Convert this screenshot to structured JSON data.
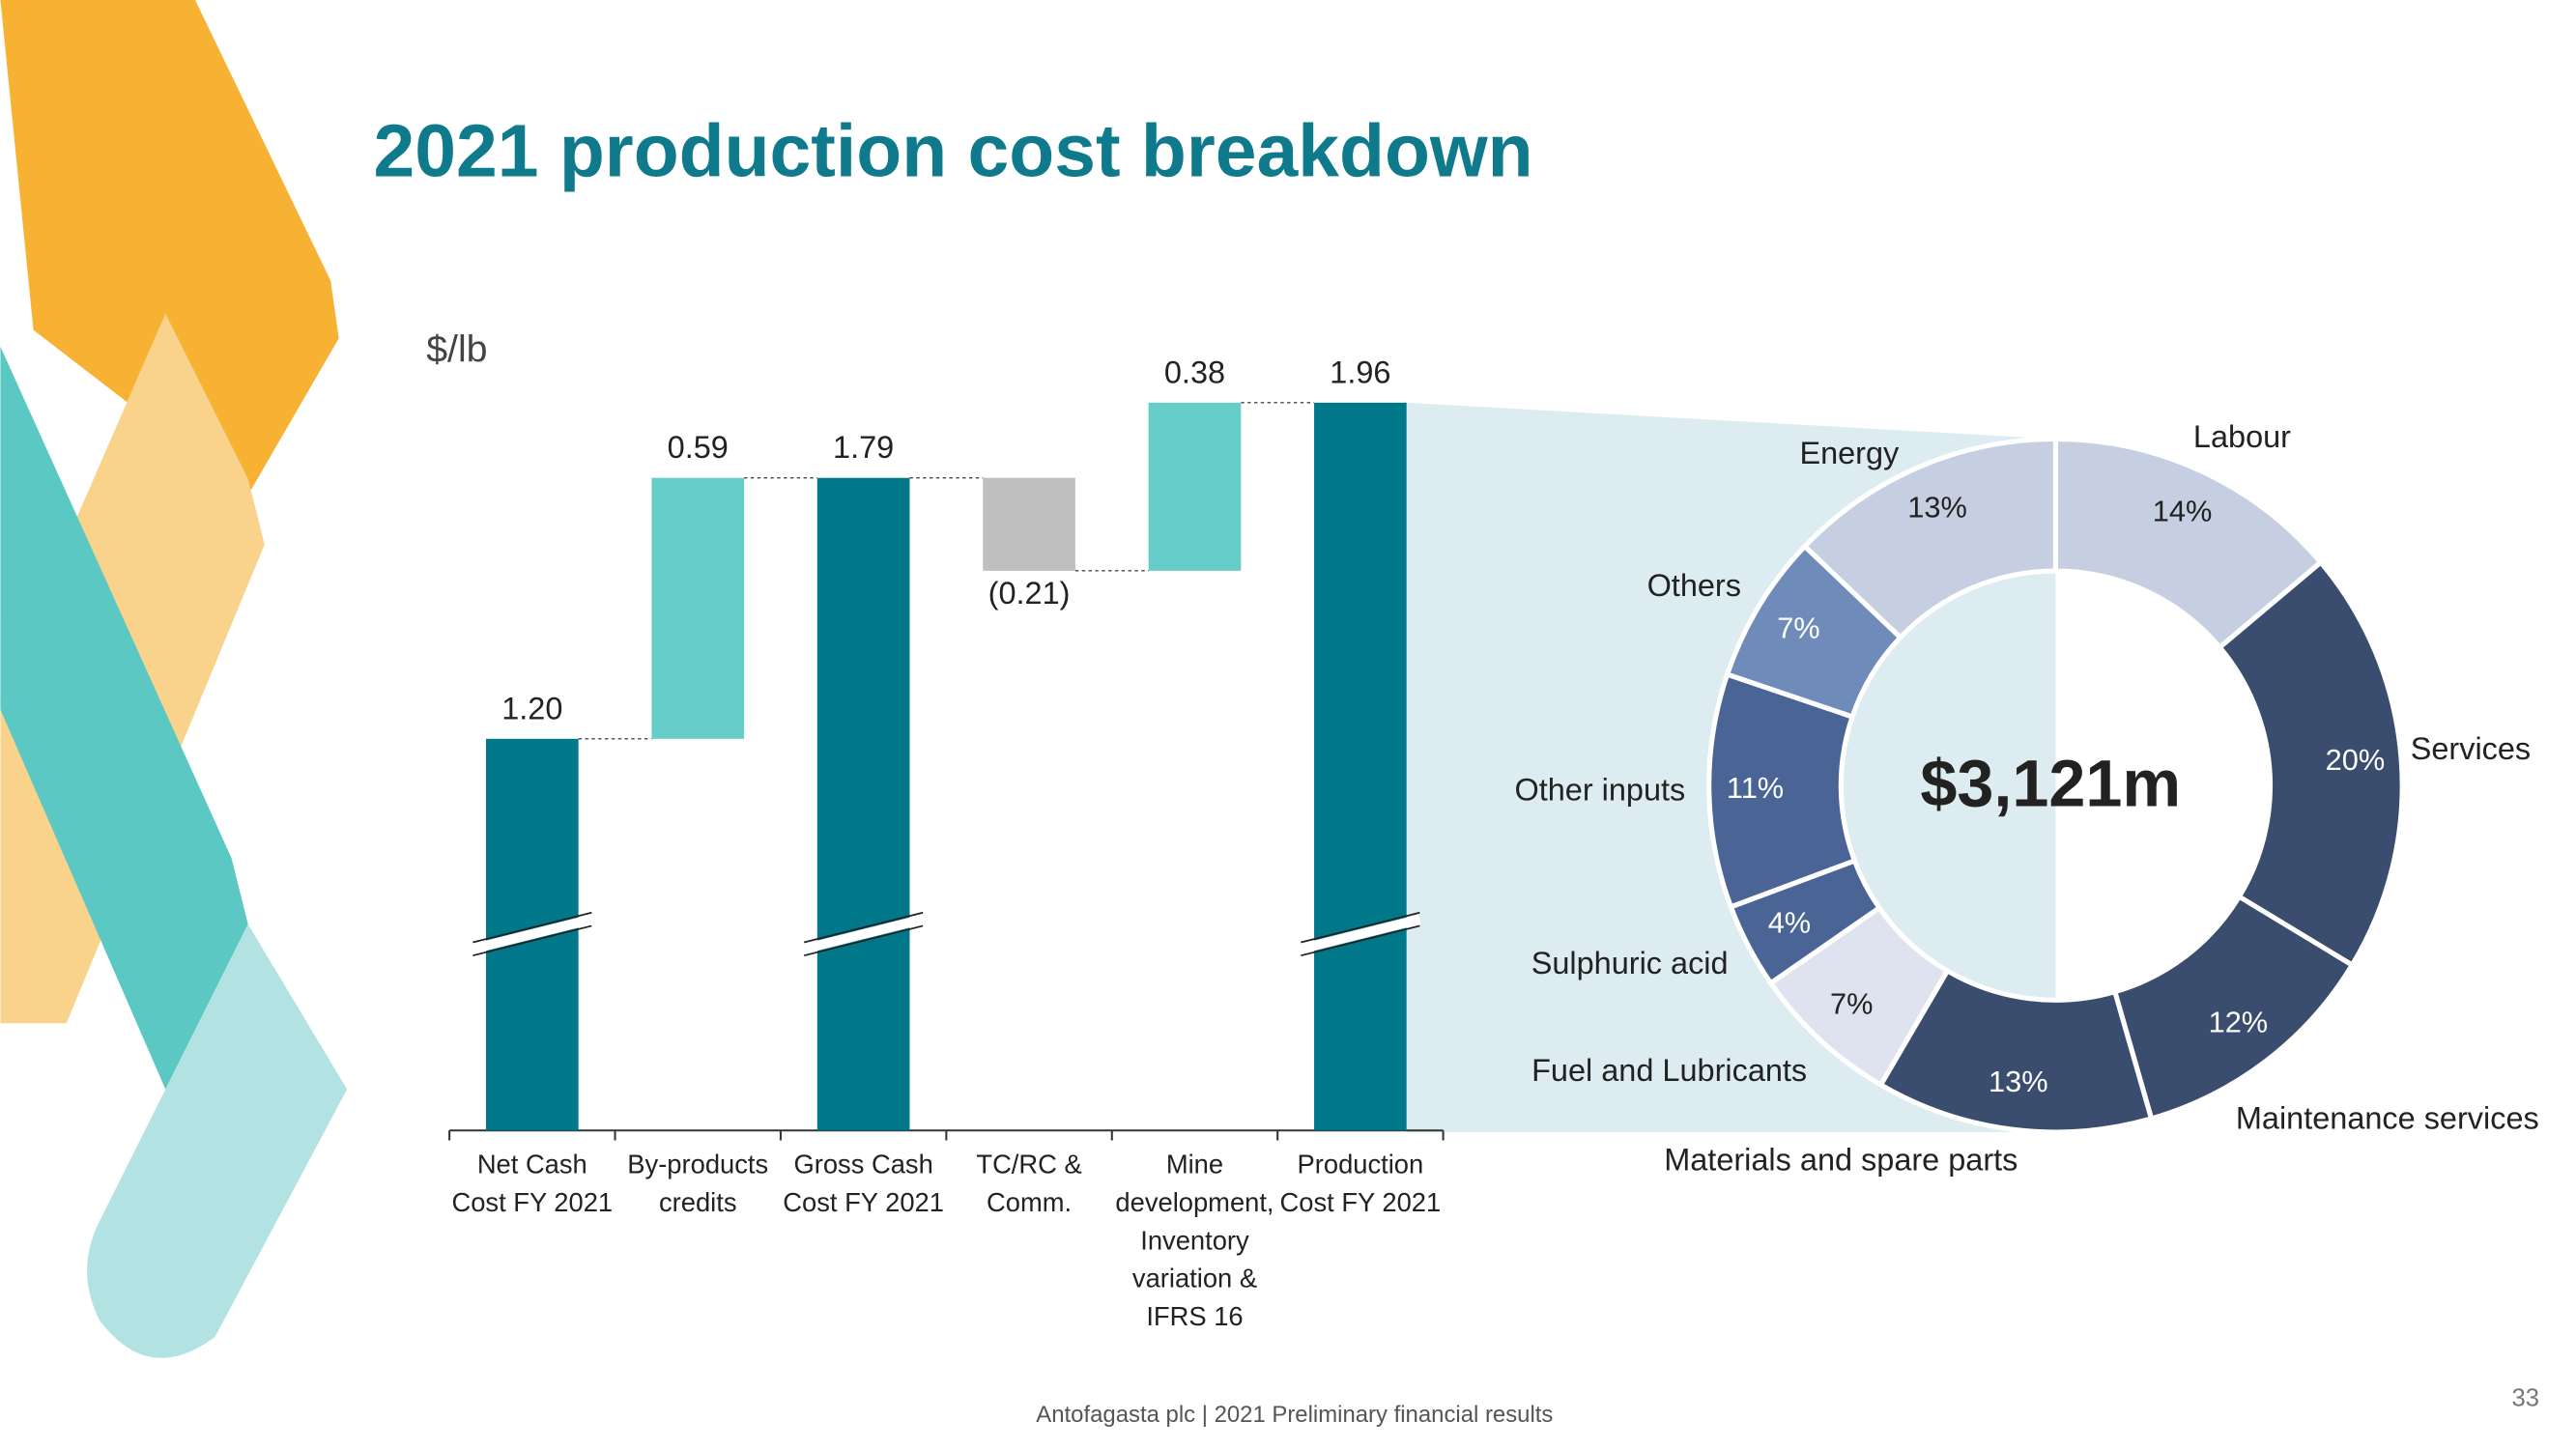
{
  "title": "2021 production cost breakdown",
  "footer": "Antofagasta plc | 2021 Preliminary financial results",
  "page_number": "33",
  "chart_data": [
    {
      "type": "waterfall",
      "unit_label": "$/lb",
      "categories": [
        "Net Cash Cost FY 2021",
        "By-products credits",
        "Gross Cash Cost FY 2021",
        "TC/RC & Comm.",
        "Mine development, Inventory variation & IFRS 16",
        "Production Cost FY 2021"
      ],
      "values": [
        1.2,
        0.59,
        1.79,
        -0.21,
        0.38,
        1.96
      ],
      "value_labels": [
        "1.20",
        "0.59",
        "1.79",
        "(0.21)",
        "0.38",
        "1.96"
      ],
      "color": "#00788a",
      "increase_color": "#66cdc8",
      "decrease_color": "#bfbfbf",
      "axis_break": true
    },
    {
      "type": "donut",
      "center_label": "$3,121m",
      "categories": [
        "Labour",
        "Services",
        "Maintenance services",
        "Materials and spare parts",
        "Fuel and Lubricants",
        "Sulphuric acid",
        "Other inputs",
        "Others",
        "Energy"
      ],
      "values": [
        14,
        20,
        12,
        13,
        7,
        4,
        11,
        7,
        13
      ],
      "value_labels": [
        "14%",
        "20%",
        "12%",
        "13%",
        "7%",
        "4%",
        "11%",
        "7%",
        "13%"
      ],
      "colors": [
        "#c5cfe1",
        "#3a4d6e",
        "#3a4d6e",
        "#3a4d6e",
        "#dfe3ef",
        "#4a6595",
        "#4a6595",
        "#6f8bba",
        "#c5cfe1"
      ]
    }
  ]
}
